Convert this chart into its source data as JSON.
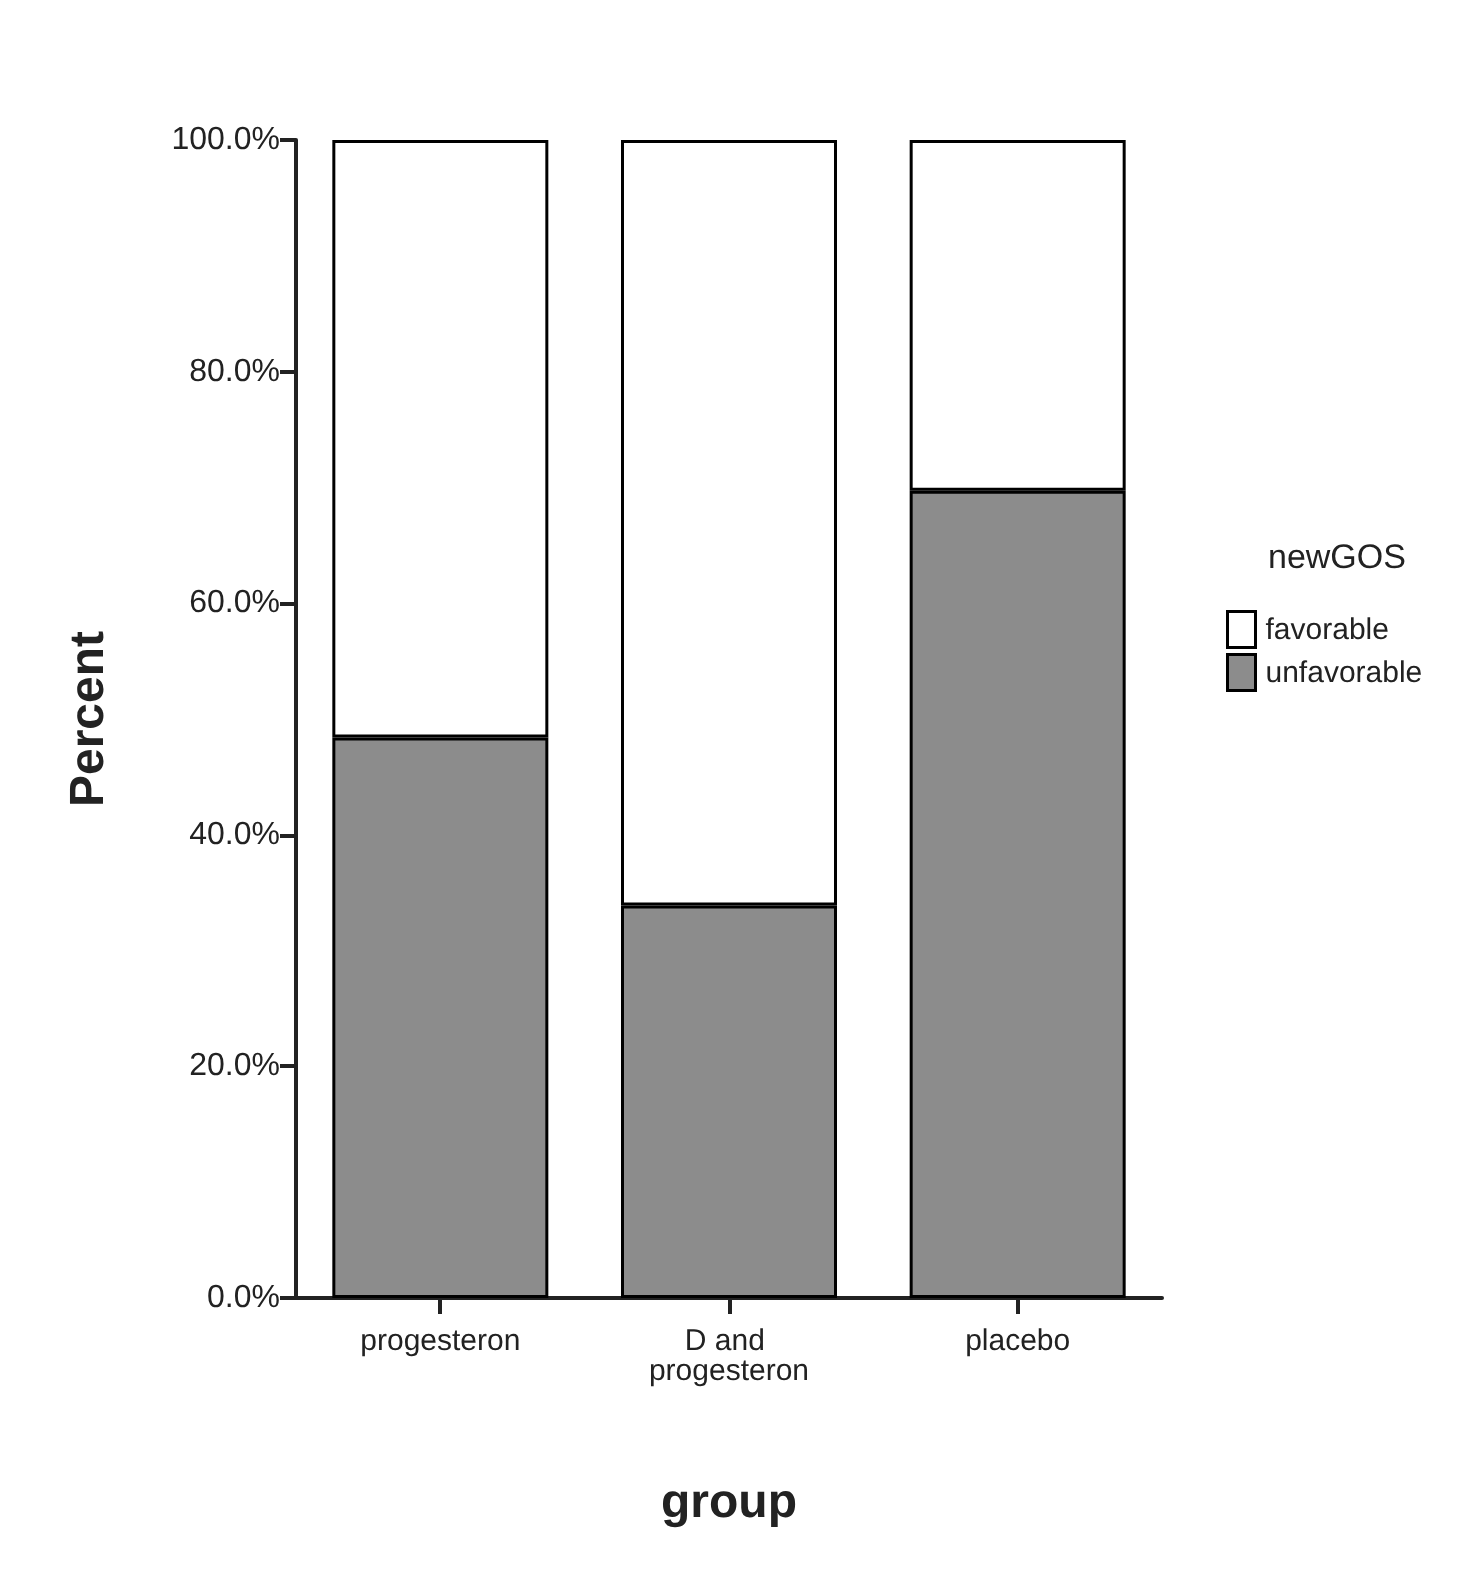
{
  "chart_data": {
    "type": "bar",
    "stacked": true,
    "categories": [
      "progesteron",
      "D and progesteron",
      "placebo"
    ],
    "series": [
      {
        "name": "unfavorable",
        "color": "#8c8c8c",
        "values": [
          48.4,
          33.9,
          69.7
        ]
      },
      {
        "name": "favorable",
        "color": "#ffffff",
        "values": [
          51.6,
          66.1,
          30.3
        ]
      }
    ],
    "xlabel": "group",
    "ylabel": "Percent",
    "legend_title": "newGOS",
    "legend": "right",
    "grid": false,
    "ylim": [
      0,
      100
    ],
    "yticks": [
      {
        "value": 0,
        "label": "0.0%"
      },
      {
        "value": 20,
        "label": "20.0%"
      },
      {
        "value": 40,
        "label": "40.0%"
      },
      {
        "value": 60,
        "label": "60.0%"
      },
      {
        "value": 80,
        "label": "80.0%"
      },
      {
        "value": 100,
        "label": "100.0%"
      }
    ]
  }
}
